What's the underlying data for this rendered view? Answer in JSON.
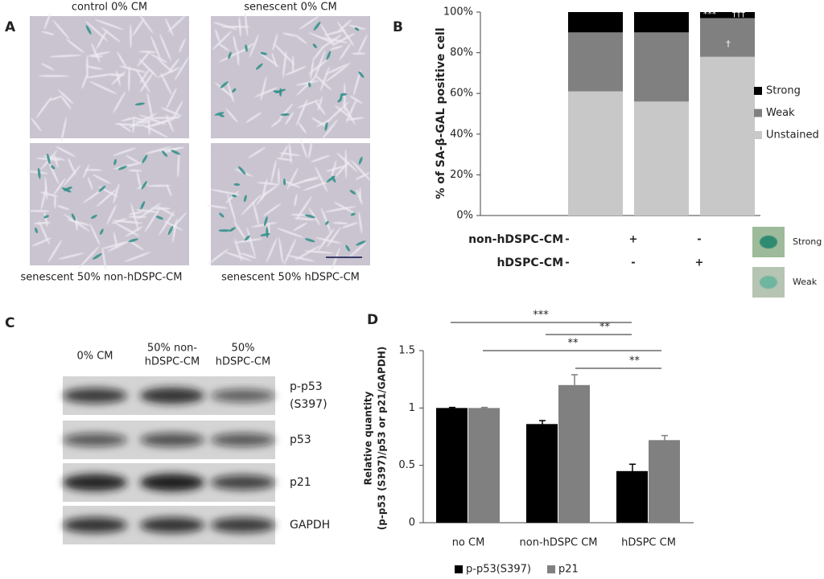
{
  "panels": {
    "a": "A",
    "b": "B",
    "c": "C",
    "d": "D"
  },
  "micrographs": {
    "labels": [
      "control 0% CM",
      "senescent 0% CM",
      "senescent 50% non-hDSPC-CM",
      "senescent 50% hDSPC-CM"
    ]
  },
  "western_blot": {
    "columns": [
      [
        "0% CM"
      ],
      [
        "50% non-",
        "hDSPC-CM"
      ],
      [
        "50%",
        "hDSPC-CM"
      ]
    ],
    "rows": [
      [
        "p-p53",
        "(S397)"
      ],
      [
        "p53"
      ],
      [
        "p21"
      ],
      [
        "GAPDH"
      ]
    ]
  },
  "chart_data": [
    {
      "type": "stacked_bar",
      "ylabel": "% of SA-β-GAL positive cell",
      "categories": [
        null,
        null,
        null,
        null
      ],
      "series": [
        {
          "name": "Strong",
          "color": "#000000",
          "values": [
            null,
            10,
            10,
            3
          ]
        },
        {
          "name": "Weak",
          "color": "#808080",
          "values": [
            null,
            29,
            34,
            19
          ]
        },
        {
          "name": "Unstained",
          "color": "#c8c8c8",
          "values": [
            null,
            61,
            56,
            78
          ]
        }
      ],
      "ylim": [
        0,
        100
      ],
      "yticks": [
        {
          "value": 0,
          "label": "0%"
        },
        {
          "value": 20,
          "label": "20%"
        },
        {
          "value": 40,
          "label": "40%"
        },
        {
          "value": 60,
          "label": "60%"
        },
        {
          "value": 80,
          "label": "80%"
        },
        {
          "value": 100,
          "label": "100%"
        }
      ],
      "legend": "right",
      "annotations": [
        "***",
        "†††",
        "†"
      ],
      "conditions": [
        {
          "label": "non-hDSPC-CM",
          "marks": [
            "-",
            "+",
            "-"
          ]
        },
        {
          "label": "hDSPC-CM",
          "marks": [
            "-",
            "-",
            "+"
          ]
        }
      ],
      "staining_examples": [
        "Strong",
        "Weak"
      ]
    },
    {
      "type": "grouped_bar",
      "ylabel": [
        "Relative quantity",
        "(p-p53 (S397)/p53 or p21/GAPDH)"
      ],
      "categories": [
        "no CM",
        "non-hDSPC CM",
        "hDSPC CM"
      ],
      "series": [
        {
          "name": "p-p53(S397)",
          "color": "#000000",
          "values": [
            1,
            0.86,
            0.45
          ],
          "errors": [
            0.005,
            0.03,
            0.06
          ]
        },
        {
          "name": "p21",
          "color": "#808080",
          "values": [
            1,
            1.2,
            0.72
          ],
          "errors": [
            0.005,
            0.09,
            0.04
          ]
        }
      ],
      "ylim": [
        0,
        1.5
      ],
      "yticks": [
        0,
        0.5,
        1,
        1.5
      ],
      "legend": "bottom",
      "significance": [
        "***",
        "**",
        "**",
        "**"
      ]
    }
  ]
}
